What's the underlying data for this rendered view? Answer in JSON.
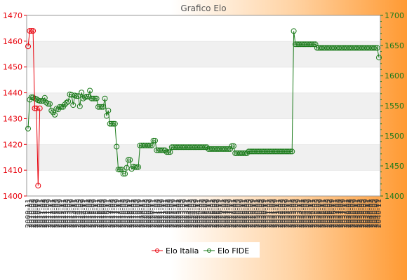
{
  "chart_data": {
    "type": "line",
    "title": "Grafico Elo",
    "x_tick_labels": [
      "2009-11",
      "2010-01",
      "2010-03",
      "2010-05",
      "2010-07",
      "2010-09",
      "2010-11",
      "2011-01",
      "2011-03",
      "2011-05",
      "2011-07",
      "2011-09",
      "2011-11",
      "2012-01",
      "2012-03",
      "2012-05",
      "2012-07",
      "2012-09",
      "2012-11",
      "2013-01",
      "2013-03",
      "2013-05",
      "2013-07",
      "2013-09",
      "2013-11",
      "2014-01",
      "2014-03",
      "2014-05",
      "2014-07",
      "2014-09",
      "2014-11",
      "2015-01",
      "2015-03",
      "2015-05",
      "2015-07",
      "2015-09",
      "2015-11",
      "2016-01",
      "2016-03",
      "2016-05",
      "2016-07",
      "2016-09",
      "2016-11",
      "2017-01",
      "2017-03",
      "2017-05",
      "2017-07",
      "2017-09",
      "2017-11",
      "2018-01",
      "2018-03",
      "2018-05",
      "2018-07",
      "2018-09",
      "2018-11",
      "2019-01",
      "2019-03",
      "2019-05",
      "2019-07",
      "2019-09",
      "2019-11",
      "2020-01",
      "2020-03",
      "2020-05",
      "2020-07",
      "2020-09",
      "2020-11",
      "2021-01",
      "2021-03",
      "2021-05",
      "2021-07",
      "2021-09",
      "2021-11",
      "2022-01",
      "2022-03",
      "2022-05",
      "2022-07",
      "2022-09",
      "2022-11",
      "2023-01",
      "2023-03",
      "2023-05",
      "2023-07",
      "2023-09",
      "2023-11",
      "2024-01",
      "2024-03",
      "2024-05",
      "2024-07",
      "2024-09",
      "2024-11",
      "2025-01",
      "2025-03",
      "2025-05",
      "2025-07",
      "2025-09",
      "2025-11",
      "2026-01",
      "2026-03",
      "2026-05",
      "2026-07",
      "2026-09",
      "2026-11",
      "2027-01",
      "2027-03",
      "2027-05",
      "2027-07",
      "2027-09",
      "2027-11",
      "2028-01",
      "2028-03",
      "2028-05",
      "2028-07",
      "2028-09",
      "2028-11",
      "2029-01",
      "2029-03",
      "2029-05",
      "2029-07",
      "2029-09",
      "2029-11",
      "2030-01",
      "2030-03",
      "2030-05",
      "2030-07",
      "2030-09",
      "2030-11",
      "2031-01",
      "2031-03",
      "2031-05",
      "2031-07",
      "2031-09",
      "2031-11",
      "2032-01",
      "2032-03",
      "2032-05",
      "2032-07",
      "2032-09",
      "2032-11",
      "2033-01",
      "2033-03",
      "2033-05",
      "2033-07",
      "2033-09",
      "2033-11",
      "2034-01",
      "2034-03",
      "2034-05",
      "2034-07",
      "2034-09",
      "2034-11",
      "2035-01",
      "2035-03",
      "2035-05",
      "2035-07",
      "2035-09",
      "2035-11",
      "2036-01",
      "2036-03",
      "2036-05",
      "2036-07",
      "2036-09",
      "2036-11",
      "2037-01",
      "2037-03",
      "2037-05",
      "2037-07",
      "2037-09",
      "2037-11",
      "2038-01",
      "2038-03",
      "2038-05",
      "2038-07",
      "2038-09",
      "2038-11",
      "2039-01",
      "2039-03",
      "2039-05",
      "2039-07",
      "2039-09",
      "2039-11",
      "2040-01",
      "2040-03",
      "2040-05",
      "2040-07",
      "2040-09",
      "2040-11"
    ],
    "y_left": {
      "min": 1400,
      "max": 1470,
      "ticks": [
        1400,
        1410,
        1420,
        1430,
        1440,
        1450,
        1460,
        1470
      ]
    },
    "y_right": {
      "min": 1400,
      "max": 1700,
      "ticks": [
        1400,
        1450,
        1500,
        1550,
        1600,
        1650,
        1700
      ]
    },
    "grid": "horizontal bands",
    "legend_position": "bottom-center",
    "series": [
      {
        "name": "Elo Italia",
        "axis": "left",
        "color": "#e8000b",
        "marker": "circle-open",
        "values": [
          1458,
          1464,
          1464,
          1464,
          1434,
          1434,
          1404,
          1434
        ]
      },
      {
        "name": "Elo FIDE",
        "axis": "right",
        "color": "#1a7a1a",
        "marker": "circle-open",
        "values": [
          1512,
          1560,
          1564,
          1564,
          1562,
          1561,
          1559,
          1558,
          1558,
          1558,
          1563,
          1555,
          1553,
          1553,
          1542,
          1539,
          1535,
          1545,
          1544,
          1548,
          1548,
          1548,
          1552,
          1555,
          1557,
          1569,
          1568,
          1551,
          1567,
          1566,
          1566,
          1549,
          1572,
          1562,
          1564,
          1565,
          1565,
          1575,
          1562,
          1562,
          1562,
          1562,
          1548,
          1548,
          1548,
          1548,
          1562,
          1533,
          1542,
          1520,
          1520,
          1520,
          1520,
          1482,
          1444,
          1444,
          1444,
          1437,
          1437,
          1447,
          1460,
          1460,
          1445,
          1449,
          1448,
          1448,
          1448,
          1484,
          1484,
          1484,
          1484,
          1484,
          1484,
          1484,
          1484,
          1492,
          1492,
          1476,
          1476,
          1476,
          1476,
          1476,
          1476,
          1473,
          1473,
          1473,
          1481,
          1481,
          1481,
          1481,
          1481,
          1481,
          1481,
          1481,
          1481,
          1481,
          1481,
          1481,
          1481,
          1481,
          1481,
          1481,
          1481,
          1481,
          1481,
          1481,
          1481,
          1481,
          1478,
          1478,
          1478,
          1478,
          1478,
          1478,
          1478,
          1478,
          1478,
          1478,
          1478,
          1478,
          1478,
          1478,
          1483,
          1483,
          1471,
          1471,
          1471,
          1471,
          1471,
          1471,
          1471,
          1471,
          1474,
          1474,
          1474,
          1474,
          1474,
          1474,
          1474,
          1474,
          1474,
          1474,
          1474,
          1474,
          1474,
          1474,
          1474,
          1474,
          1474,
          1474,
          1474,
          1474,
          1474,
          1474,
          1474,
          1474,
          1474,
          1474,
          1474,
          1674,
          1652,
          1652,
          1652,
          1652,
          1652,
          1652,
          1652,
          1652,
          1652,
          1652,
          1652,
          1652,
          1652,
          1646,
          1646,
          1646,
          1646,
          1646,
          1646,
          1646,
          1646,
          1646,
          1646,
          1646,
          1646,
          1646,
          1646,
          1646,
          1646,
          1646,
          1646,
          1646,
          1646,
          1646,
          1646,
          1646,
          1646,
          1646,
          1646,
          1646,
          1646,
          1646,
          1646,
          1646,
          1646,
          1646,
          1646,
          1646,
          1646,
          1646,
          1630
        ]
      }
    ]
  }
}
